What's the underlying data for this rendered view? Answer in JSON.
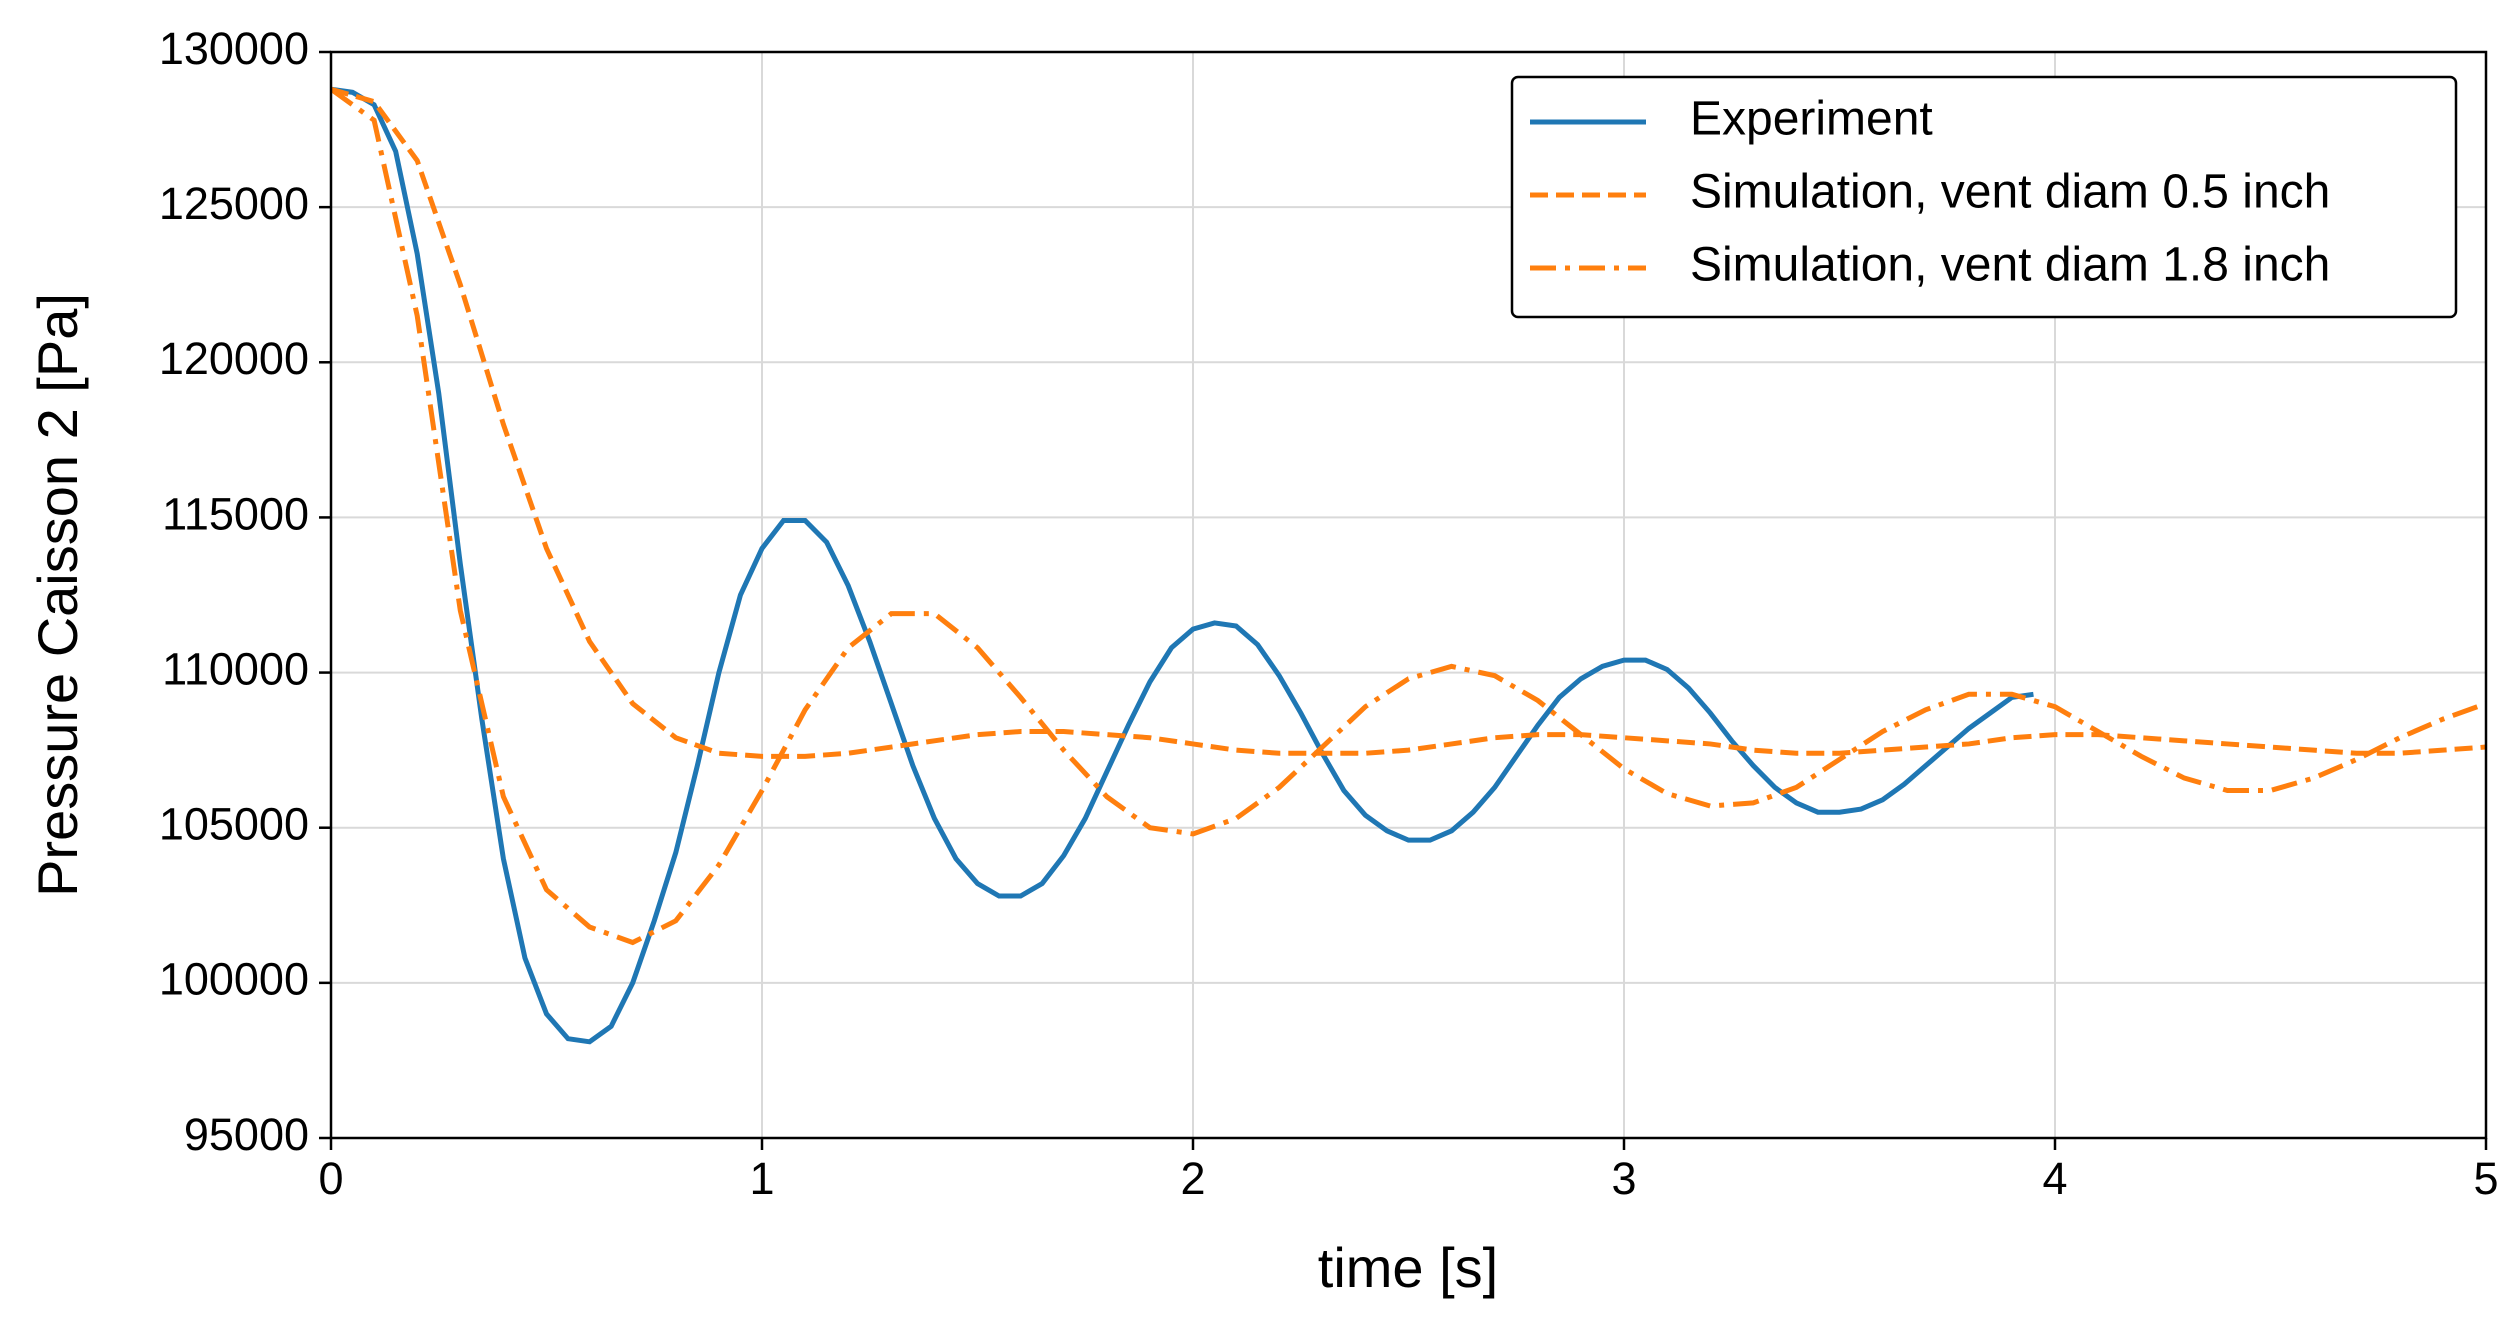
{
  "chart_data": {
    "type": "line",
    "xlabel": "time [s]",
    "ylabel": "Pressure Caisson 2 [Pa]",
    "xlim": [
      0,
      5
    ],
    "xticks": [
      0,
      1,
      2,
      3,
      4,
      5
    ],
    "ylim": [
      95000,
      130000
    ],
    "yticks": [
      95000,
      100000,
      105000,
      110000,
      115000,
      120000,
      125000,
      130000
    ],
    "grid": true,
    "legend": "upper right",
    "series": [
      {
        "name": "Experiment",
        "color": "#1f77b4",
        "linestyle": "solid",
        "x": [
          0,
          0.05,
          0.1,
          0.15,
          0.2,
          0.25,
          0.3,
          0.35,
          0.4,
          0.45,
          0.5,
          0.55,
          0.6,
          0.65,
          0.7,
          0.75,
          0.8,
          0.85,
          0.9,
          0.95,
          1,
          1.05,
          1.1,
          1.15,
          1.2,
          1.25,
          1.3,
          1.35,
          1.4,
          1.45,
          1.5,
          1.55,
          1.6,
          1.65,
          1.7,
          1.75,
          1.8,
          1.85,
          1.9,
          1.95,
          2,
          2.05,
          2.1,
          2.15,
          2.2,
          2.25,
          2.3,
          2.35,
          2.4,
          2.45,
          2.5,
          2.55,
          2.6,
          2.65,
          2.7,
          2.75,
          2.8,
          2.85,
          2.9,
          2.95,
          3,
          3.05,
          3.1,
          3.15,
          3.2,
          3.25,
          3.3,
          3.35,
          3.4,
          3.45,
          3.5,
          3.55,
          3.6,
          3.65,
          3.7,
          3.75,
          3.8,
          3.85,
          3.9,
          3.95
        ],
        "values": [
          128800,
          128700,
          128300,
          126800,
          123500,
          119000,
          113500,
          108500,
          104000,
          100800,
          99000,
          98200,
          98100,
          98600,
          100000,
          102000,
          104200,
          107000,
          110000,
          112500,
          114000,
          114900,
          114900,
          114200,
          112800,
          111000,
          109000,
          107000,
          105300,
          104000,
          103200,
          102800,
          102800,
          103200,
          104100,
          105300,
          106800,
          108300,
          109700,
          110800,
          111400,
          111600,
          111500,
          110900,
          109900,
          108700,
          107400,
          106200,
          105400,
          104900,
          104600,
          104600,
          104900,
          105500,
          106300,
          107300,
          108300,
          109200,
          109800,
          110200,
          110400,
          110400,
          110100,
          109500,
          108700,
          107800,
          107000,
          106300,
          105800,
          105500,
          105500,
          105600,
          105900,
          106400,
          107000,
          107600,
          108200,
          108700,
          109200,
          109300
        ]
      },
      {
        "name": "Simulation, vent diam 0.5 inch",
        "color": "#ff7f0e",
        "linestyle": "dashed",
        "x": [
          0,
          0.1,
          0.2,
          0.3,
          0.4,
          0.5,
          0.6,
          0.7,
          0.8,
          0.9,
          1,
          1.1,
          1.2,
          1.3,
          1.4,
          1.5,
          1.6,
          1.7,
          1.8,
          1.9,
          2,
          2.1,
          2.2,
          2.3,
          2.4,
          2.5,
          2.6,
          2.7,
          2.8,
          2.9,
          3,
          3.1,
          3.2,
          3.3,
          3.4,
          3.5,
          3.6,
          3.7,
          3.8,
          3.9,
          4,
          4.1,
          4.2,
          4.3,
          4.4,
          4.5,
          4.6,
          4.7,
          4.8,
          4.9,
          5
        ],
        "values": [
          128800,
          128400,
          126500,
          122500,
          118000,
          114000,
          111000,
          109000,
          107900,
          107400,
          107300,
          107300,
          107400,
          107600,
          107800,
          108000,
          108100,
          108100,
          108000,
          107900,
          107700,
          107500,
          107400,
          107400,
          107400,
          107500,
          107700,
          107900,
          108000,
          108000,
          107900,
          107800,
          107700,
          107500,
          107400,
          107400,
          107500,
          107600,
          107700,
          107900,
          108000,
          108000,
          107900,
          107800,
          107700,
          107600,
          107500,
          107400,
          107400,
          107500,
          107600
        ]
      },
      {
        "name": "Simulation, vent diam 1.8 inch",
        "color": "#ff7f0e",
        "linestyle": "dashdot",
        "x": [
          0,
          0.1,
          0.2,
          0.3,
          0.4,
          0.5,
          0.6,
          0.7,
          0.8,
          0.9,
          1,
          1.1,
          1.2,
          1.3,
          1.4,
          1.5,
          1.6,
          1.7,
          1.8,
          1.9,
          2,
          2.1,
          2.2,
          2.3,
          2.4,
          2.5,
          2.6,
          2.7,
          2.8,
          2.9,
          3,
          3.1,
          3.2,
          3.3,
          3.4,
          3.5,
          3.6,
          3.7,
          3.8,
          3.9,
          4,
          4.1,
          4.2,
          4.3,
          4.4,
          4.5,
          4.6,
          4.7,
          4.8,
          4.9,
          5
        ],
        "values": [
          128800,
          127800,
          121500,
          112000,
          106000,
          103000,
          101800,
          101300,
          102000,
          103800,
          106200,
          108800,
          110800,
          111900,
          111900,
          110800,
          109200,
          107500,
          106000,
          105000,
          104800,
          105300,
          106300,
          107600,
          108900,
          109800,
          110200,
          109900,
          109100,
          108000,
          106900,
          106100,
          105700,
          105800,
          106300,
          107200,
          108100,
          108800,
          109300,
          109300,
          108900,
          108100,
          107300,
          106600,
          106200,
          106200,
          106600,
          107200,
          107900,
          108500,
          109000
        ]
      }
    ]
  }
}
